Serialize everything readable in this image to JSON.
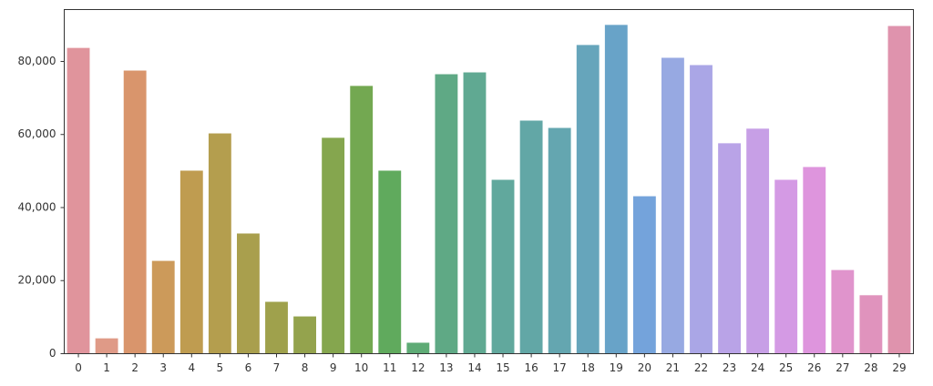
{
  "chart_data": {
    "type": "bar",
    "categories": [
      "0",
      "1",
      "2",
      "3",
      "4",
      "5",
      "6",
      "7",
      "8",
      "9",
      "10",
      "11",
      "12",
      "13",
      "14",
      "15",
      "16",
      "17",
      "18",
      "19",
      "20",
      "21",
      "22",
      "23",
      "24",
      "25",
      "26",
      "27",
      "28",
      "29"
    ],
    "values": [
      83700,
      4200,
      77500,
      25400,
      50100,
      60300,
      32900,
      14200,
      10200,
      59100,
      73300,
      50100,
      3000,
      76500,
      77000,
      47600,
      63800,
      61800,
      84500,
      90000,
      43100,
      81000,
      79000,
      57600,
      61600,
      47600,
      51100,
      22900,
      16000,
      89700
    ],
    "colors": [
      "#e0949c",
      "#df9a87",
      "#d9956c",
      "#cc9a5a",
      "#bf9c50",
      "#b49e4e",
      "#a99f4d",
      "#9fa14c",
      "#94a34d",
      "#85a64e",
      "#73a851",
      "#60aa5d",
      "#5eab75",
      "#5fa985",
      "#60a992",
      "#61a89d",
      "#62a7a6",
      "#64a6b0",
      "#66a5bb",
      "#68a3c8",
      "#74a3db",
      "#97a9e2",
      "#aaa6e6",
      "#b9a3e7",
      "#c79fe6",
      "#d49ae4",
      "#de95dd",
      "#e094cc",
      "#e093bd",
      "#df93ad"
    ],
    "ylim": [
      0,
      94200
    ],
    "yticks": [
      0,
      {
        "value": 20000,
        "label": "20,000"
      },
      {
        "value": 40000,
        "label": "40,000"
      },
      {
        "value": 60000,
        "label": "60,000"
      },
      {
        "value": 80000,
        "label": "80,000"
      }
    ],
    "grid": false
  }
}
